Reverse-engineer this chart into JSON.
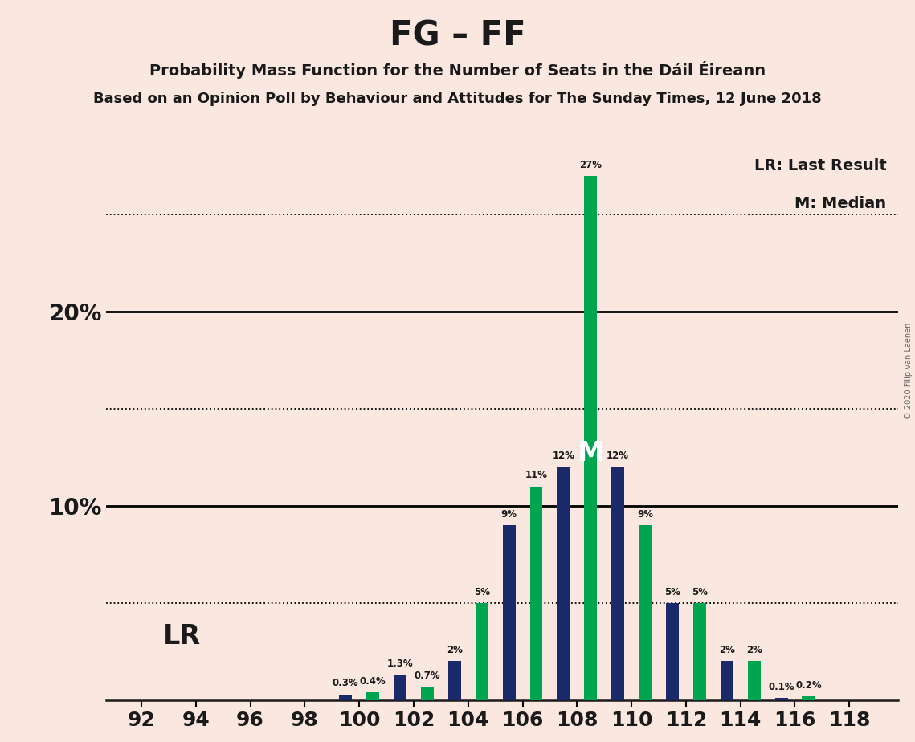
{
  "title": "FG – FF",
  "subtitle1": "Probability Mass Function for the Number of Seats in the Dáil Éireann",
  "subtitle2": "Based on an Opinion Poll by Behaviour and Attitudes for The Sunday Times, 12 June 2018",
  "copyright": "© 2020 Filip van Laenen",
  "navy_seats": [
    92,
    94,
    96,
    98,
    100,
    102,
    104,
    106,
    108,
    110,
    112,
    114,
    116,
    118
  ],
  "green_seats": [
    93,
    95,
    97,
    99,
    101,
    103,
    105,
    107,
    109,
    111,
    113,
    115,
    117,
    119
  ],
  "navy_values": [
    0,
    0,
    0,
    0,
    0.3,
    1.3,
    2,
    9,
    12,
    12,
    5,
    2,
    0.1,
    0
  ],
  "green_values": [
    0,
    0,
    0,
    0,
    0.4,
    0.7,
    5,
    11,
    27,
    9,
    5,
    2,
    0.2,
    0
  ],
  "navy_color": "#1a2969",
  "green_color": "#00a550",
  "bg_color": "#fae8e0",
  "text_color": "#1a1a1a",
  "median_green_idx": 8,
  "lr_navy_idx": 4,
  "dotted_yticks": [
    5,
    15,
    25
  ],
  "solid_yticks": [
    10,
    20
  ],
  "ylim": [
    0,
    30
  ],
  "xtick_labels": [
    "92",
    "94",
    "96",
    "98",
    "100",
    "102",
    "104",
    "106",
    "108",
    "110",
    "112",
    "114",
    "116",
    "118"
  ],
  "bar_width": 0.47
}
